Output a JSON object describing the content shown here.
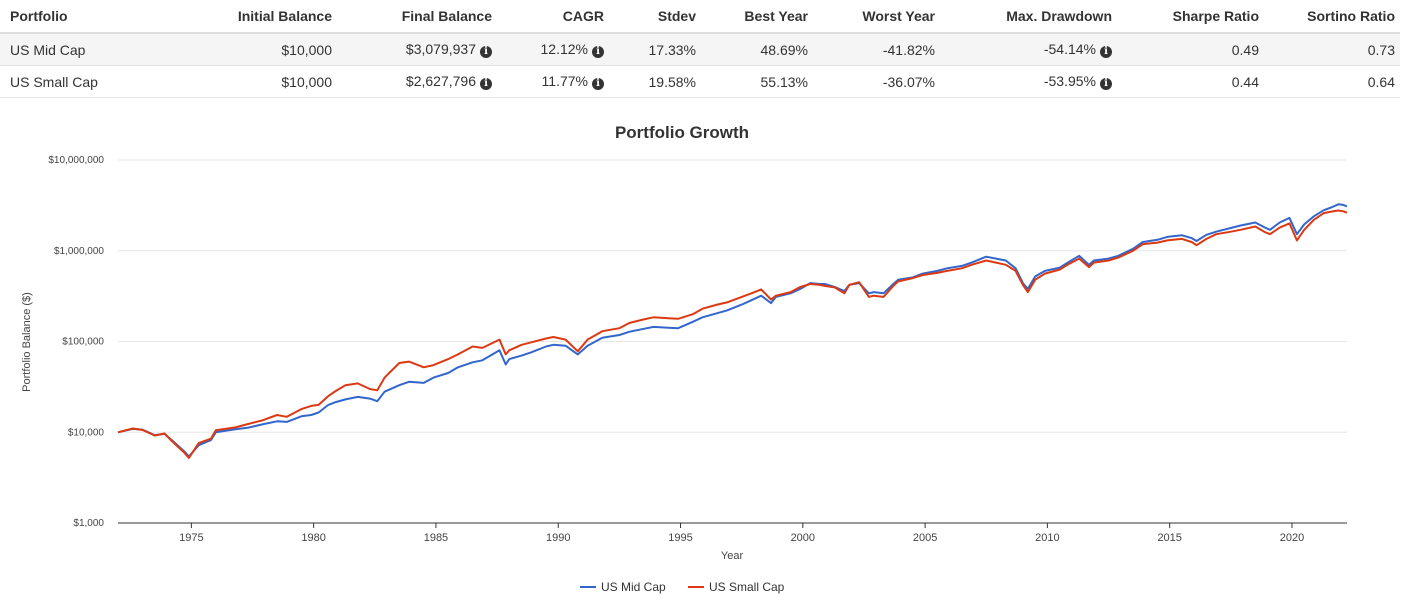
{
  "table": {
    "headers": [
      "Portfolio",
      "Initial Balance",
      "Final Balance",
      "CAGR",
      "Stdev",
      "Best Year",
      "Worst Year",
      "Max. Drawdown",
      "Sharpe Ratio",
      "Sortino Ratio"
    ],
    "rows": [
      {
        "portfolio": "US Mid Cap",
        "initial": "$10,000",
        "final": "$3,079,937",
        "cagr": "12.12%",
        "stdev": "17.33%",
        "best": "48.69%",
        "worst": "-41.82%",
        "drawdown": "-54.14%",
        "sharpe": "0.49",
        "sortino": "0.73"
      },
      {
        "portfolio": "US Small Cap",
        "initial": "$10,000",
        "final": "$2,627,796",
        "cagr": "11.77%",
        "stdev": "19.58%",
        "best": "55.13%",
        "worst": "-36.07%",
        "drawdown": "-53.95%",
        "sharpe": "0.44",
        "sortino": "0.64"
      }
    ],
    "info_icon": "info-circle-icon"
  },
  "chart_data": {
    "type": "line",
    "title": "Portfolio Growth",
    "xlabel": "Year",
    "ylabel": "Portfolio Balance ($)",
    "y_scale": "log",
    "ylim": [
      1000,
      10000000
    ],
    "xlim": [
      1972,
      2022.25
    ],
    "y_ticks": [
      1000,
      10000,
      100000,
      1000000,
      10000000
    ],
    "y_tick_labels": [
      "$1,000",
      "$10,000",
      "$100,000",
      "$1,000,000",
      "$10,000,000"
    ],
    "x_ticks": [
      1975,
      1980,
      1985,
      1990,
      1995,
      2000,
      2005,
      2010,
      2015,
      2020
    ],
    "x_tick_labels": [
      "1975",
      "1980",
      "1985",
      "1990",
      "1995",
      "2000",
      "2005",
      "2010",
      "2015",
      "2020"
    ],
    "grid": true,
    "legend_position": "bottom",
    "series": [
      {
        "name": "US Mid Cap",
        "color": "#3366cc",
        "points": [
          [
            1972,
            10000
          ],
          [
            1972.6,
            10900
          ],
          [
            1973.0,
            10700
          ],
          [
            1973.5,
            9300
          ],
          [
            1973.9,
            9600
          ],
          [
            1974.2,
            8200
          ],
          [
            1974.7,
            6200
          ],
          [
            1974.9,
            5400
          ],
          [
            1975.3,
            7200
          ],
          [
            1975.8,
            8200
          ],
          [
            1976.0,
            10000
          ],
          [
            1976.8,
            10800
          ],
          [
            1977.3,
            11200
          ],
          [
            1977.9,
            12200
          ],
          [
            1978.5,
            13200
          ],
          [
            1978.9,
            13000
          ],
          [
            1979.5,
            15000
          ],
          [
            1979.9,
            15500
          ],
          [
            1980.2,
            16500
          ],
          [
            1980.6,
            20000
          ],
          [
            1980.9,
            21500
          ],
          [
            1981.3,
            23000
          ],
          [
            1981.8,
            24500
          ],
          [
            1982.3,
            23500
          ],
          [
            1982.6,
            22000
          ],
          [
            1982.9,
            28000
          ],
          [
            1983.5,
            33000
          ],
          [
            1983.9,
            36000
          ],
          [
            1984.5,
            35000
          ],
          [
            1984.9,
            40000
          ],
          [
            1985.5,
            45000
          ],
          [
            1985.9,
            52000
          ],
          [
            1986.5,
            59000
          ],
          [
            1986.9,
            62000
          ],
          [
            1987.6,
            80000
          ],
          [
            1987.85,
            56000
          ],
          [
            1988.0,
            64000
          ],
          [
            1988.5,
            70000
          ],
          [
            1988.9,
            76000
          ],
          [
            1989.5,
            88000
          ],
          [
            1989.8,
            92000
          ],
          [
            1990.3,
            90000
          ],
          [
            1990.8,
            72000
          ],
          [
            1991.2,
            90000
          ],
          [
            1991.8,
            110000
          ],
          [
            1992.5,
            118000
          ],
          [
            1992.9,
            128000
          ],
          [
            1993.5,
            138000
          ],
          [
            1993.9,
            145000
          ],
          [
            1994.5,
            142000
          ],
          [
            1994.9,
            140000
          ],
          [
            1995.5,
            165000
          ],
          [
            1995.9,
            185000
          ],
          [
            1996.5,
            205000
          ],
          [
            1996.9,
            220000
          ],
          [
            1997.5,
            255000
          ],
          [
            1997.9,
            285000
          ],
          [
            1998.3,
            320000
          ],
          [
            1998.7,
            265000
          ],
          [
            1998.9,
            310000
          ],
          [
            1999.5,
            340000
          ],
          [
            1999.9,
            380000
          ],
          [
            2000.3,
            440000
          ],
          [
            2000.7,
            430000
          ],
          [
            2000.9,
            430000
          ],
          [
            2001.3,
            400000
          ],
          [
            2001.7,
            360000
          ],
          [
            2001.9,
            420000
          ],
          [
            2002.3,
            440000
          ],
          [
            2002.7,
            340000
          ],
          [
            2002.9,
            350000
          ],
          [
            2003.3,
            340000
          ],
          [
            2003.7,
            430000
          ],
          [
            2003.9,
            480000
          ],
          [
            2004.5,
            510000
          ],
          [
            2004.9,
            560000
          ],
          [
            2005.5,
            600000
          ],
          [
            2005.9,
            640000
          ],
          [
            2006.5,
            680000
          ],
          [
            2006.9,
            740000
          ],
          [
            2007.5,
            860000
          ],
          [
            2007.9,
            820000
          ],
          [
            2008.3,
            780000
          ],
          [
            2008.7,
            640000
          ],
          [
            2009.0,
            440000
          ],
          [
            2009.2,
            380000
          ],
          [
            2009.5,
            520000
          ],
          [
            2009.9,
            600000
          ],
          [
            2010.5,
            650000
          ],
          [
            2010.9,
            760000
          ],
          [
            2011.3,
            880000
          ],
          [
            2011.7,
            700000
          ],
          [
            2011.9,
            780000
          ],
          [
            2012.5,
            820000
          ],
          [
            2012.9,
            880000
          ],
          [
            2013.5,
            1050000
          ],
          [
            2013.9,
            1250000
          ],
          [
            2014.5,
            1320000
          ],
          [
            2014.9,
            1420000
          ],
          [
            2015.5,
            1480000
          ],
          [
            2015.9,
            1380000
          ],
          [
            2016.1,
            1280000
          ],
          [
            2016.5,
            1500000
          ],
          [
            2016.9,
            1620000
          ],
          [
            2017.5,
            1780000
          ],
          [
            2017.9,
            1900000
          ],
          [
            2018.5,
            2050000
          ],
          [
            2018.9,
            1800000
          ],
          [
            2019.1,
            1700000
          ],
          [
            2019.5,
            2050000
          ],
          [
            2019.9,
            2300000
          ],
          [
            2020.2,
            1520000
          ],
          [
            2020.5,
            1950000
          ],
          [
            2020.9,
            2400000
          ],
          [
            2021.3,
            2800000
          ],
          [
            2021.6,
            3000000
          ],
          [
            2021.9,
            3250000
          ],
          [
            2022.1,
            3200000
          ],
          [
            2022.25,
            3079937
          ]
        ]
      },
      {
        "name": "US Small Cap",
        "color": "#dc3912",
        "points": [
          [
            1972,
            10000
          ],
          [
            1972.6,
            11000
          ],
          [
            1973.0,
            10600
          ],
          [
            1973.5,
            9200
          ],
          [
            1973.9,
            9700
          ],
          [
            1974.2,
            8000
          ],
          [
            1974.7,
            6000
          ],
          [
            1974.9,
            5200
          ],
          [
            1975.3,
            7600
          ],
          [
            1975.8,
            8500
          ],
          [
            1976.0,
            10500
          ],
          [
            1976.8,
            11300
          ],
          [
            1977.3,
            12300
          ],
          [
            1977.9,
            13500
          ],
          [
            1978.5,
            15500
          ],
          [
            1978.9,
            14800
          ],
          [
            1979.5,
            18000
          ],
          [
            1979.9,
            19500
          ],
          [
            1980.2,
            20000
          ],
          [
            1980.6,
            25000
          ],
          [
            1980.9,
            28500
          ],
          [
            1981.3,
            33000
          ],
          [
            1981.8,
            34500
          ],
          [
            1982.3,
            30000
          ],
          [
            1982.6,
            29000
          ],
          [
            1982.9,
            40000
          ],
          [
            1983.5,
            58000
          ],
          [
            1983.9,
            60000
          ],
          [
            1984.5,
            52000
          ],
          [
            1984.9,
            55000
          ],
          [
            1985.5,
            64000
          ],
          [
            1985.9,
            72000
          ],
          [
            1986.5,
            88000
          ],
          [
            1986.9,
            85000
          ],
          [
            1987.6,
            105000
          ],
          [
            1987.85,
            72000
          ],
          [
            1988.0,
            80000
          ],
          [
            1988.5,
            92000
          ],
          [
            1988.9,
            98000
          ],
          [
            1989.5,
            108000
          ],
          [
            1989.8,
            112000
          ],
          [
            1990.3,
            105000
          ],
          [
            1990.8,
            78000
          ],
          [
            1991.2,
            105000
          ],
          [
            1991.8,
            130000
          ],
          [
            1992.5,
            140000
          ],
          [
            1992.9,
            160000
          ],
          [
            1993.5,
            175000
          ],
          [
            1993.9,
            185000
          ],
          [
            1994.5,
            180000
          ],
          [
            1994.9,
            178000
          ],
          [
            1995.5,
            200000
          ],
          [
            1995.9,
            230000
          ],
          [
            1996.5,
            255000
          ],
          [
            1996.9,
            270000
          ],
          [
            1997.5,
            310000
          ],
          [
            1997.9,
            340000
          ],
          [
            1998.3,
            375000
          ],
          [
            1998.7,
            290000
          ],
          [
            1998.9,
            320000
          ],
          [
            1999.5,
            350000
          ],
          [
            1999.9,
            400000
          ],
          [
            2000.3,
            430000
          ],
          [
            2000.7,
            420000
          ],
          [
            2000.9,
            410000
          ],
          [
            2001.3,
            395000
          ],
          [
            2001.7,
            340000
          ],
          [
            2001.9,
            420000
          ],
          [
            2002.3,
            450000
          ],
          [
            2002.7,
            310000
          ],
          [
            2002.9,
            320000
          ],
          [
            2003.3,
            310000
          ],
          [
            2003.7,
            410000
          ],
          [
            2003.9,
            460000
          ],
          [
            2004.5,
            500000
          ],
          [
            2004.9,
            540000
          ],
          [
            2005.5,
            570000
          ],
          [
            2005.9,
            600000
          ],
          [
            2006.5,
            640000
          ],
          [
            2006.9,
            700000
          ],
          [
            2007.5,
            780000
          ],
          [
            2007.9,
            740000
          ],
          [
            2008.3,
            700000
          ],
          [
            2008.7,
            600000
          ],
          [
            2009.0,
            420000
          ],
          [
            2009.2,
            350000
          ],
          [
            2009.5,
            480000
          ],
          [
            2009.9,
            560000
          ],
          [
            2010.5,
            620000
          ],
          [
            2010.9,
            720000
          ],
          [
            2011.3,
            820000
          ],
          [
            2011.7,
            660000
          ],
          [
            2011.9,
            740000
          ],
          [
            2012.5,
            780000
          ],
          [
            2012.9,
            840000
          ],
          [
            2013.5,
            1000000
          ],
          [
            2013.9,
            1180000
          ],
          [
            2014.5,
            1230000
          ],
          [
            2014.9,
            1300000
          ],
          [
            2015.5,
            1350000
          ],
          [
            2015.9,
            1250000
          ],
          [
            2016.1,
            1150000
          ],
          [
            2016.5,
            1350000
          ],
          [
            2016.9,
            1520000
          ],
          [
            2017.5,
            1620000
          ],
          [
            2017.9,
            1700000
          ],
          [
            2018.5,
            1850000
          ],
          [
            2018.9,
            1600000
          ],
          [
            2019.1,
            1520000
          ],
          [
            2019.5,
            1800000
          ],
          [
            2019.9,
            2000000
          ],
          [
            2020.2,
            1300000
          ],
          [
            2020.5,
            1700000
          ],
          [
            2020.9,
            2200000
          ],
          [
            2021.3,
            2600000
          ],
          [
            2021.6,
            2700000
          ],
          [
            2021.9,
            2780000
          ],
          [
            2022.1,
            2720000
          ],
          [
            2022.25,
            2627796
          ]
        ]
      }
    ]
  }
}
